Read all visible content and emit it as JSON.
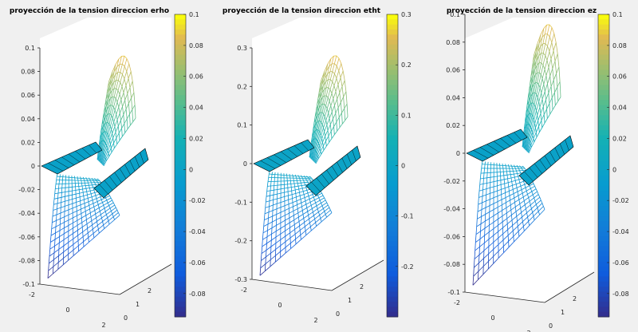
{
  "figure": {
    "background": "#f0f0f0"
  },
  "chart_data": [
    {
      "type": "surface",
      "title": "proyección de la tension direccion erho",
      "zlim": [
        -0.1,
        0.1
      ],
      "z_ticks": [
        -0.1,
        -0.08,
        -0.06,
        -0.04,
        -0.02,
        0,
        0.02,
        0.04,
        0.06,
        0.08,
        0.1
      ],
      "z_tick_labels": [
        "-0.1",
        "-0.08",
        "-0.06",
        "-0.04",
        "-0.02",
        "0",
        "0.02",
        "0.04",
        "0.06",
        "0.08",
        "0.1"
      ],
      "x_tick_labels": [
        "-2",
        "0",
        "2"
      ],
      "y_tick_labels": [
        "0",
        "1",
        "2"
      ],
      "colorbar": {
        "range": [
          -0.095,
          0.1
        ],
        "ticks": [
          -0.08,
          -0.06,
          -0.04,
          -0.02,
          0,
          0.02,
          0.04,
          0.06,
          0.08,
          0.1
        ],
        "tick_labels": [
          "-0.08",
          "-0.06",
          "-0.04",
          "-0.02",
          "0",
          "0.02",
          "0.04",
          "0.06",
          "0.08",
          "0.1"
        ]
      },
      "surface_extremes": {
        "min": -0.095,
        "max": 0.09
      },
      "colormap": "parula"
    },
    {
      "type": "surface",
      "title": "proyección de la tension direccion etht",
      "zlim": [
        -0.3,
        0.3
      ],
      "z_ticks": [
        -0.3,
        -0.2,
        -0.1,
        0,
        0.1,
        0.2,
        0.3
      ],
      "z_tick_labels": [
        "-0.3",
        "-0.2",
        "-0.1",
        "0",
        "0.1",
        "0.2",
        "0.3"
      ],
      "x_tick_labels": [
        "-2",
        "0",
        "2"
      ],
      "y_tick_labels": [
        "0",
        "1",
        "2"
      ],
      "colorbar": {
        "range": [
          -0.3,
          0.3
        ],
        "ticks": [
          -0.2,
          -0.1,
          0,
          0.1,
          0.2,
          0.3
        ],
        "tick_labels": [
          "-0.2",
          "-0.1",
          "0",
          "0.1",
          "0.2",
          "0.3"
        ]
      },
      "surface_extremes": {
        "min": -0.29,
        "max": 0.27
      },
      "colormap": "parula"
    },
    {
      "type": "surface",
      "title": "proyección de la tension direccion ez",
      "zlim": [
        -0.1,
        0.1
      ],
      "z_ticks": [
        -0.1,
        -0.08,
        -0.06,
        -0.04,
        -0.02,
        0,
        0.02,
        0.04,
        0.06,
        0.08,
        0.1
      ],
      "z_tick_labels": [
        "-0.1",
        "-0.08",
        "-0.06",
        "-0.04",
        "-0.02",
        "0",
        "0.02",
        "0.04",
        "0.06",
        "0.08",
        "0.1"
      ],
      "x_tick_labels": [
        "-2",
        "0",
        "2"
      ],
      "y_tick_labels": [
        "0",
        "1",
        "2"
      ],
      "colorbar": {
        "range": [
          -0.095,
          0.1
        ],
        "ticks": [
          -0.08,
          -0.06,
          -0.04,
          -0.02,
          0,
          0.02,
          0.04,
          0.06,
          0.08,
          0.1
        ],
        "tick_labels": [
          "-0.08",
          "-0.06",
          "-0.04",
          "-0.02",
          "0",
          "0.02",
          "0.04",
          "0.06",
          "0.08",
          "0.1"
        ]
      },
      "surface_extremes": {
        "min": -0.095,
        "max": 0.09
      },
      "colormap": "parula"
    }
  ]
}
